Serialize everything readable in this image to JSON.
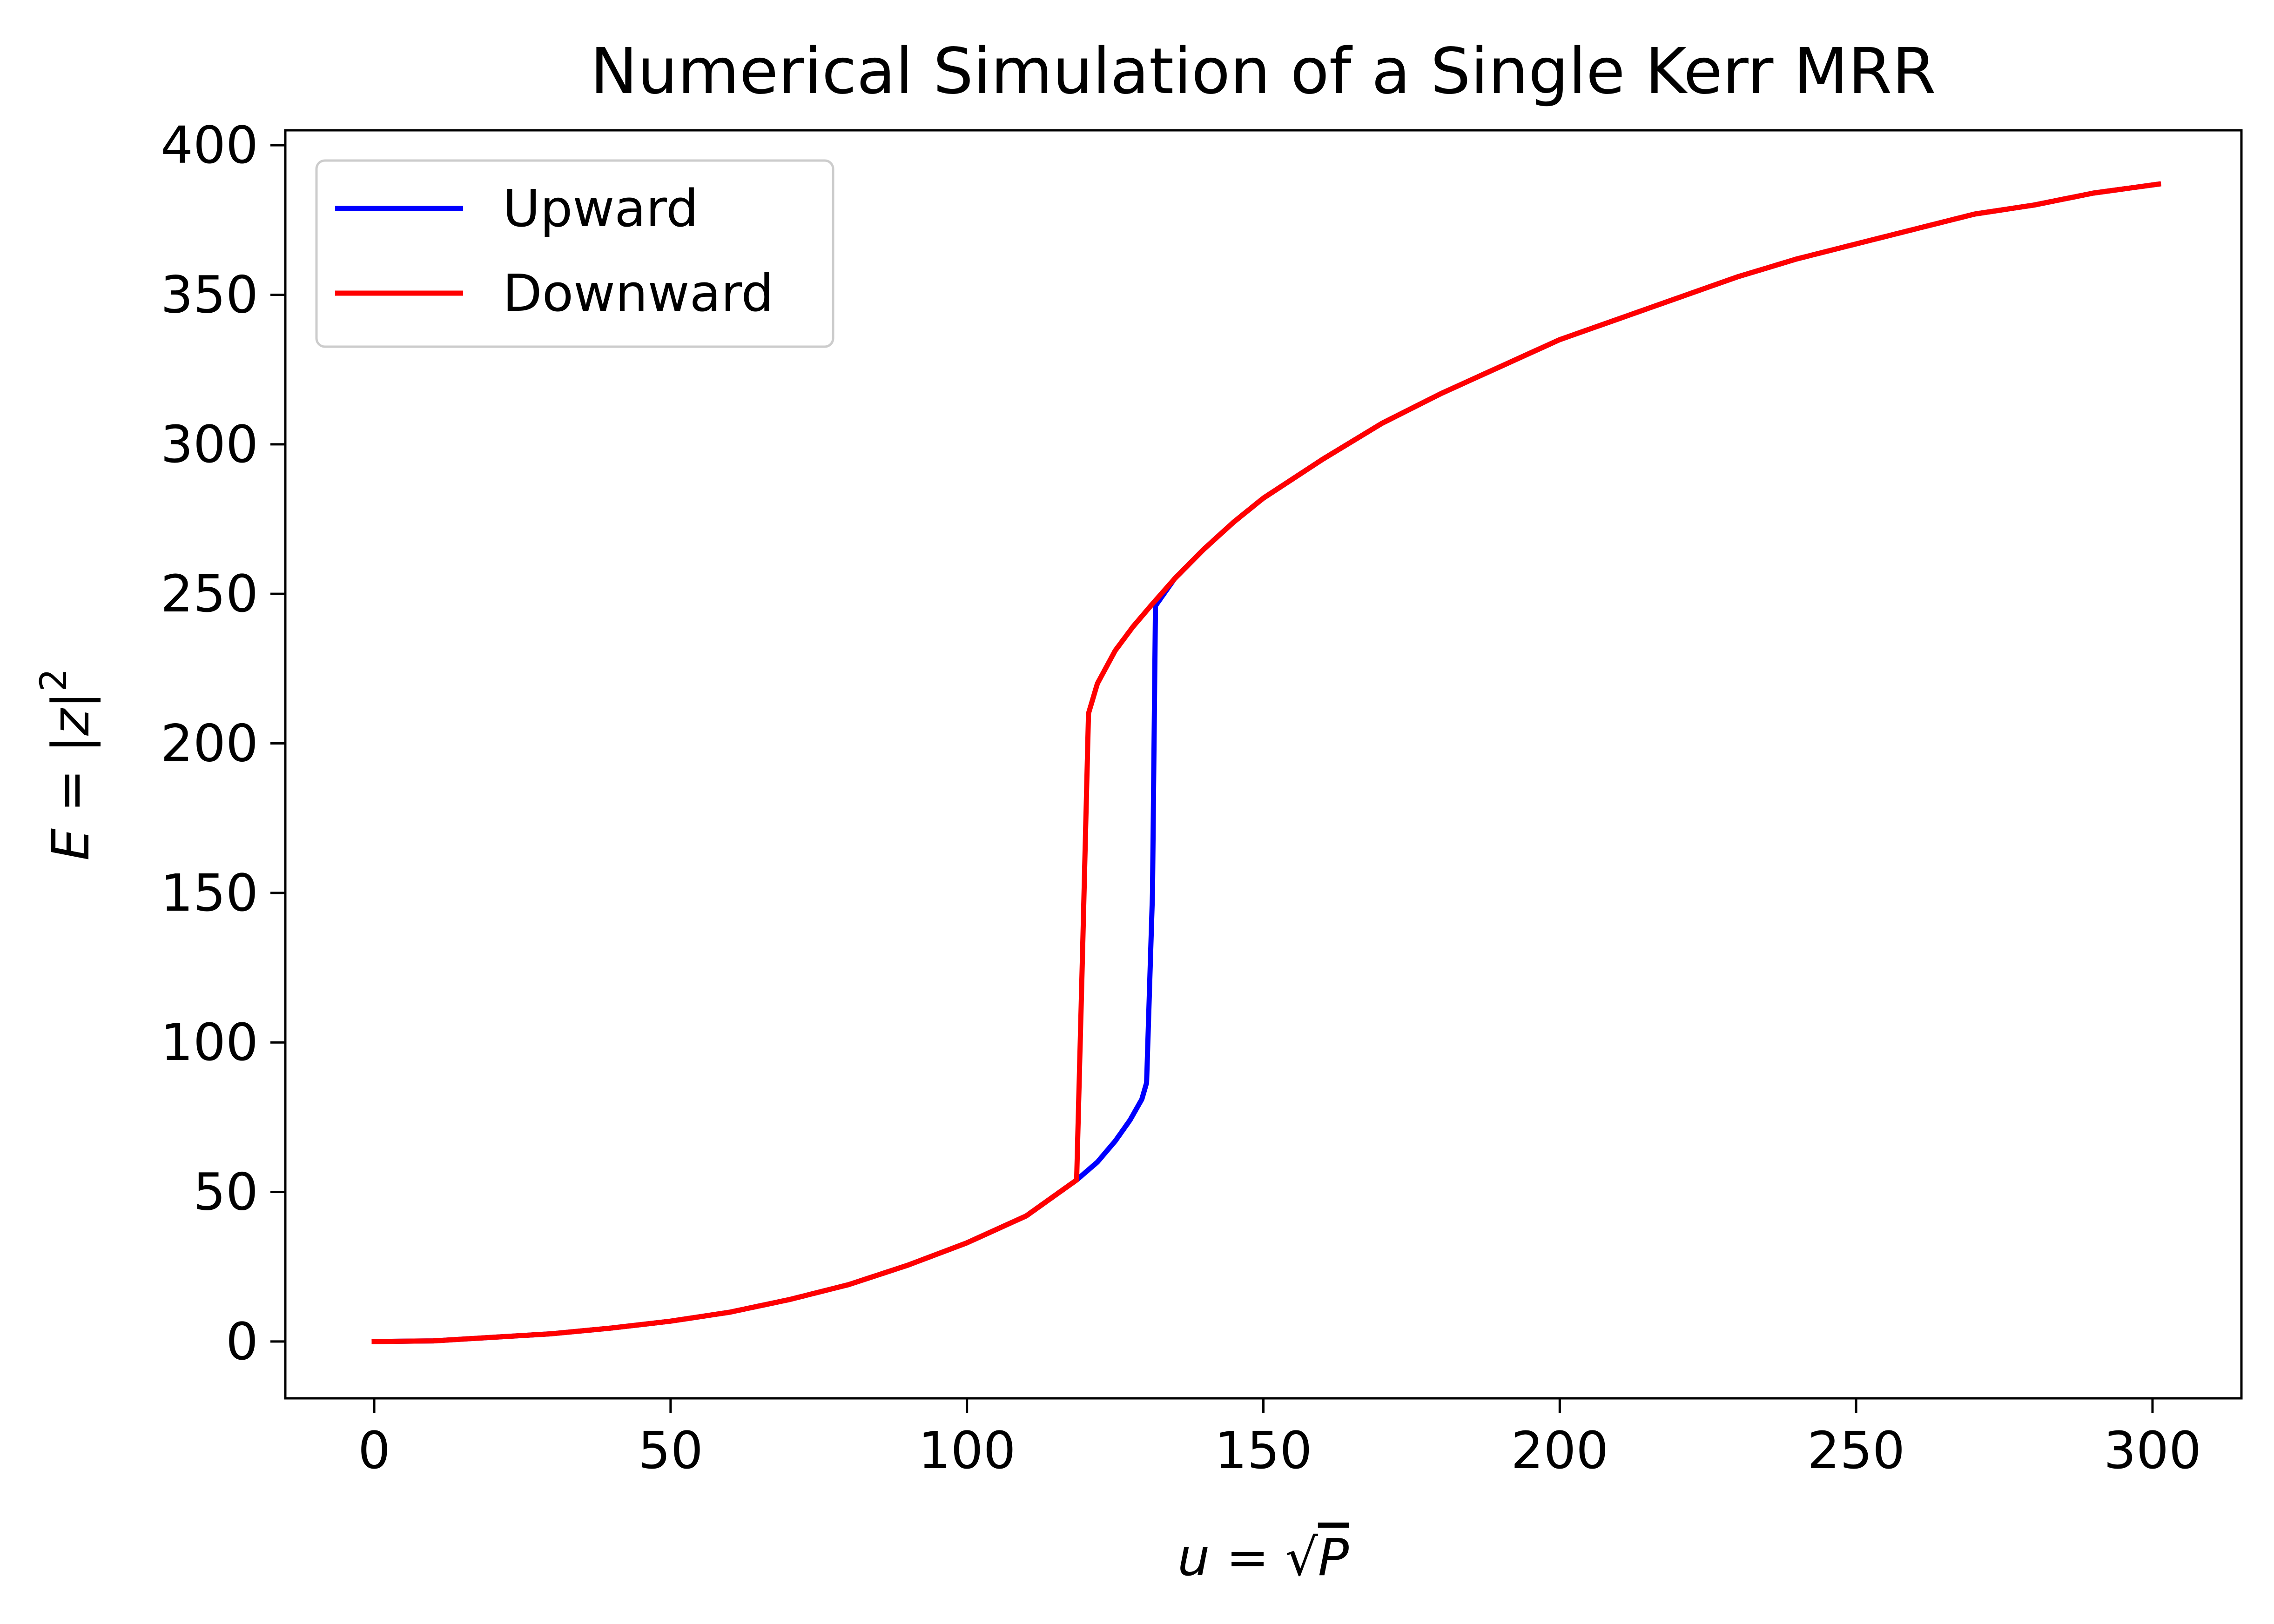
{
  "chart_data": {
    "type": "line",
    "title": "Numerical Simulation of a Single Kerr MRR",
    "xlabel": {
      "lhs": "u",
      "eq": " = ",
      "sqrt": "√",
      "var": "P"
    },
    "ylabel": {
      "lhs": "E",
      "eq": " = ",
      "bar_open": "|",
      "var": "z",
      "bar_close": "|",
      "exp": "2"
    },
    "xlim": [
      -15,
      315
    ],
    "ylim": [
      -19,
      405
    ],
    "xticks": [
      0,
      50,
      100,
      150,
      200,
      250,
      300
    ],
    "xtick_labels": [
      "0",
      "50",
      "100",
      "150",
      "200",
      "250",
      "300"
    ],
    "yticks": [
      0,
      50,
      100,
      150,
      200,
      250,
      300,
      350,
      400
    ],
    "ytick_labels": [
      "0",
      "50",
      "100",
      "150",
      "200",
      "250",
      "300",
      "350",
      "400"
    ],
    "grid": false,
    "legend_position": "upper-left",
    "series": [
      {
        "name": "Upward",
        "color": "#0000ff",
        "x": [
          0,
          10,
          20,
          30,
          40,
          50,
          60,
          70,
          80,
          90,
          100,
          110,
          118.5,
          122,
          125,
          127.5,
          129.5,
          130.3,
          131.3,
          131.8,
          135,
          140,
          145,
          150,
          160,
          170,
          180,
          190,
          200,
          210,
          220,
          230,
          240,
          250,
          260,
          270,
          280,
          290,
          301
        ],
        "y": [
          0,
          0.2,
          1.4,
          2.6,
          4.5,
          6.8,
          9.8,
          14,
          19,
          25.5,
          33,
          42,
          54,
          60,
          67,
          74,
          81,
          86.5,
          150,
          246,
          255,
          265,
          274,
          282,
          295,
          307,
          317,
          326,
          335,
          342,
          349,
          356,
          362,
          367,
          372,
          377,
          380,
          384,
          387
        ]
      },
      {
        "name": "Downward",
        "color": "#ff0000",
        "x": [
          0,
          10,
          20,
          30,
          40,
          50,
          60,
          70,
          80,
          90,
          100,
          110,
          118.5,
          119.5,
          120.5,
          122,
          125,
          128,
          131,
          135,
          140,
          145,
          150,
          160,
          170,
          180,
          190,
          200,
          210,
          220,
          230,
          240,
          250,
          260,
          270,
          280,
          290,
          301
        ],
        "y": [
          0,
          0.2,
          1.4,
          2.6,
          4.5,
          6.8,
          9.8,
          14,
          19,
          25.5,
          33,
          42,
          54,
          130,
          210,
          220,
          231,
          239,
          246,
          255,
          265,
          274,
          282,
          295,
          307,
          317,
          326,
          335,
          342,
          349,
          356,
          362,
          367,
          372,
          377,
          380,
          384,
          387
        ]
      }
    ]
  }
}
